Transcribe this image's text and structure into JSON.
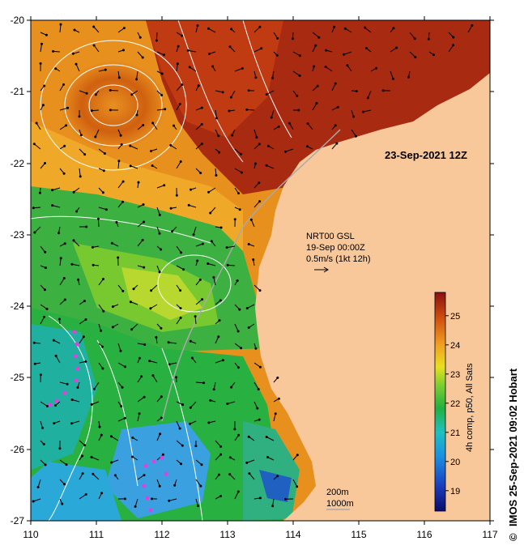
{
  "map": {
    "date_label": "23-Sep-2021 12Z",
    "current_source": "NRT00 GSL",
    "current_time": "19-Sep 00:00Z",
    "vector_scale": "0.5m/s (1kt 12h)",
    "isobath_labels": [
      "200m",
      "1000m"
    ],
    "credit": "IMOS 25-Sep-2021 09:02 Hobart",
    "copyright_symbol": "©"
  },
  "axes": {
    "lon_ticks": [
      "110",
      "111",
      "112",
      "113",
      "114",
      "115",
      "116",
      "117"
    ],
    "lat_ticks": [
      "-20",
      "-21",
      "-22",
      "-23",
      "-24",
      "-25",
      "-26",
      "-27"
    ],
    "lon_range": [
      110,
      117
    ],
    "lat_range": [
      -27,
      -20
    ]
  },
  "colorbar": {
    "title": "4h comp, p50, All Sats",
    "ticks": [
      "19",
      "20",
      "21",
      "22",
      "23",
      "24",
      "25"
    ],
    "range": [
      18.3,
      25.8
    ]
  },
  "colors": {
    "land": "#f8c79a",
    "vectors": "#000000",
    "contours": "#ffffff",
    "shelf_line": "#a9a9a9",
    "floats": "#e040e0"
  }
}
